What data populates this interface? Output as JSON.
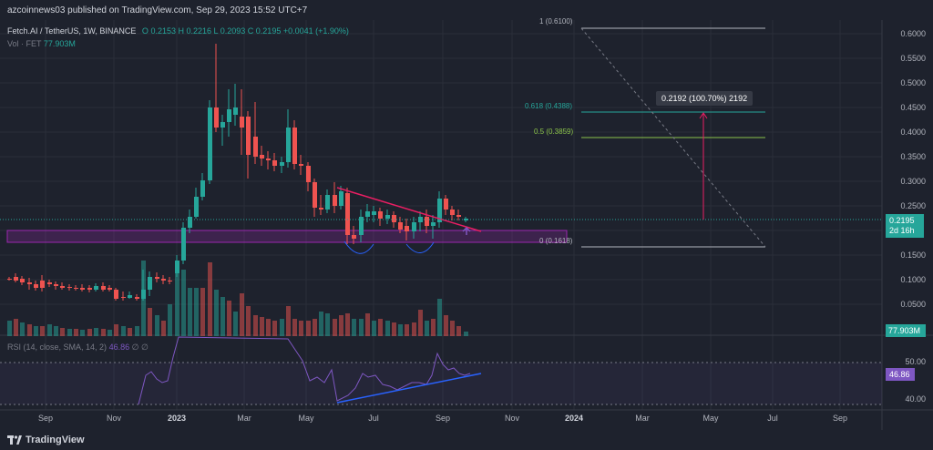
{
  "header": {
    "publisher_line": "azcoinnews03 published on TradingView.com, Sep 29, 2023 15:52 UTC+7"
  },
  "legend": {
    "symbol": "Fetch.AI / TetherUS, 1W, BINANCE",
    "o_label": "O",
    "o_value": "0.2153",
    "h_label": "H",
    "h_value": "0.2216",
    "l_label": "L",
    "l_value": "0.2093",
    "c_label": "C",
    "c_value": "0.2195",
    "change": "+0.0041 (+1.90%)",
    "vol_label": "Vol · FET",
    "vol_value": "77.903M"
  },
  "rsi_legend": {
    "label": "RSI (14, close, SMA, 14, 2)",
    "value": "46.86",
    "extra": "∅ ∅"
  },
  "price_axis": [
    "0.6000",
    "0.5500",
    "0.5000",
    "0.4500",
    "0.4000",
    "0.3500",
    "0.3000",
    "0.2500",
    "0.1500",
    "0.1000",
    "0.0500"
  ],
  "current_price": {
    "value": "0.2195",
    "countdown": "2d 16h"
  },
  "volume_badge": "77.903M",
  "rsi_axis": [
    "50.00",
    "40.00"
  ],
  "rsi_badge": "46.86",
  "time_axis": [
    "Sep",
    "Nov",
    "2023",
    "Mar",
    "May",
    "Jul",
    "Sep",
    "Nov",
    "2024",
    "Mar",
    "May",
    "Jul",
    "Sep"
  ],
  "fib_levels": [
    {
      "label": "1 (0.6100)",
      "color": "#b2b5be"
    },
    {
      "label": "0.618 (0.4388)",
      "color": "#26a69a"
    },
    {
      "label": "0.5 (0.3859)",
      "color": "#8bc34a"
    },
    {
      "label": "0 (0.1618)",
      "color": "#b2b5be"
    }
  ],
  "measure_tooltip": "0.2192 (100.70%) 2192",
  "footer": {
    "brand": "TradingView"
  },
  "colors": {
    "up": "#26a69a",
    "down": "#ef5350",
    "rsi": "#7e57c2",
    "trend": "#e91e63",
    "support": "#9c27b0"
  }
}
